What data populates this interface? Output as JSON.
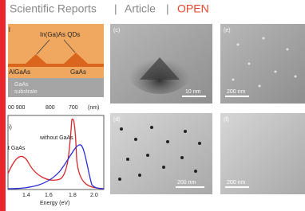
{
  "header": {
    "journal": "Scientific Reports",
    "sep1": "|",
    "type": "Article",
    "sep2": "|",
    "access": "OPEN"
  },
  "schematic": {
    "label": "l",
    "qds": "In(Ga)As QDs",
    "barrier": "AlGaAs",
    "layer": "GaAs",
    "substrate1": "GaAs",
    "substrate2": "substrate",
    "wavelength_ticks": [
      "00 900",
      "800",
      "700",
      "(nm)"
    ]
  },
  "spectrum": {
    "label": "i)",
    "curve1": "without GaAs",
    "curve2": "t GaAs",
    "xticks": [
      "1.4",
      "1.6",
      "1.8",
      "2.0"
    ],
    "xlabel": "Energy (eV)"
  },
  "panels": [
    {
      "label": "(c)",
      "scale": "10 nm"
    },
    {
      "label": "(e)",
      "scale": "200 nm"
    },
    {
      "label": "(d)",
      "scale": "200 nm"
    },
    {
      "label": "(f)",
      "scale": "200 nm"
    }
  ]
}
